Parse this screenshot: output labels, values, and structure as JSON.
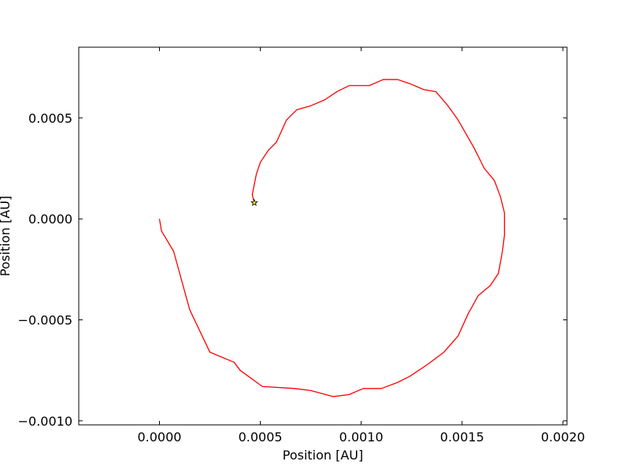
{
  "chart_data": {
    "type": "line",
    "title": "",
    "xlabel": "Position [AU]",
    "ylabel": "Position [AU]",
    "xlim": [
      -0.0004,
      0.00202
    ],
    "ylim": [
      -0.00102,
      0.00085
    ],
    "grid": false,
    "x_ticks": [
      0.0,
      0.0005,
      0.001,
      0.0015,
      0.002
    ],
    "x_tick_labels": [
      "0.0000",
      "0.0005",
      "0.0010",
      "0.0015",
      "0.0020"
    ],
    "y_ticks": [
      -0.001,
      -0.0005,
      0.0,
      0.0005
    ],
    "y_tick_labels": [
      "−0.0010",
      "−0.0005",
      "0.0000",
      "0.0005"
    ],
    "series": [
      {
        "color": "#ff0000",
        "x": [
          0.0,
          1e-05,
          7e-05,
          0.00015,
          0.00025,
          0.00037,
          0.0004,
          0.00051,
          0.00067,
          0.00075,
          0.00086,
          0.00094,
          0.00101,
          0.0011,
          0.00118,
          0.00124,
          0.00133,
          0.00141,
          0.00148,
          0.00153,
          0.00158,
          0.00164,
          0.00168,
          0.0017,
          0.00171,
          0.00171,
          0.00169,
          0.00166,
          0.00161,
          0.00156,
          0.00148,
          0.00143,
          0.00137,
          0.00131,
          0.00124,
          0.00118,
          0.00111,
          0.00104,
          0.00094,
          0.00088,
          0.00082,
          0.00075,
          0.00068,
          0.00063,
          0.00058,
          0.00054,
          0.0005,
          0.00048,
          0.00047,
          0.00046,
          0.00047
        ],
        "y": [
          0.0,
          -6e-05,
          -0.00016,
          -0.00045,
          -0.00066,
          -0.00071,
          -0.00075,
          -0.00083,
          -0.00084,
          -0.00085,
          -0.00088,
          -0.00087,
          -0.00084,
          -0.00084,
          -0.00081,
          -0.00078,
          -0.00072,
          -0.00066,
          -0.00058,
          -0.00047,
          -0.00038,
          -0.00033,
          -0.00027,
          -0.00016,
          -8e-05,
          3e-05,
          0.00011,
          0.00019,
          0.00025,
          0.00035,
          0.00049,
          0.00056,
          0.00063,
          0.00064,
          0.00067,
          0.00069,
          0.00069,
          0.00066,
          0.00066,
          0.00063,
          0.00059,
          0.00056,
          0.00054,
          0.00049,
          0.00038,
          0.00034,
          0.00028,
          0.00022,
          0.00017,
          0.00012,
          8e-05
        ]
      }
    ],
    "markers": [
      {
        "shape": "star",
        "x": 0.00047,
        "y": 8e-05,
        "fill": "#ffff00",
        "stroke": "#000000"
      }
    ]
  }
}
